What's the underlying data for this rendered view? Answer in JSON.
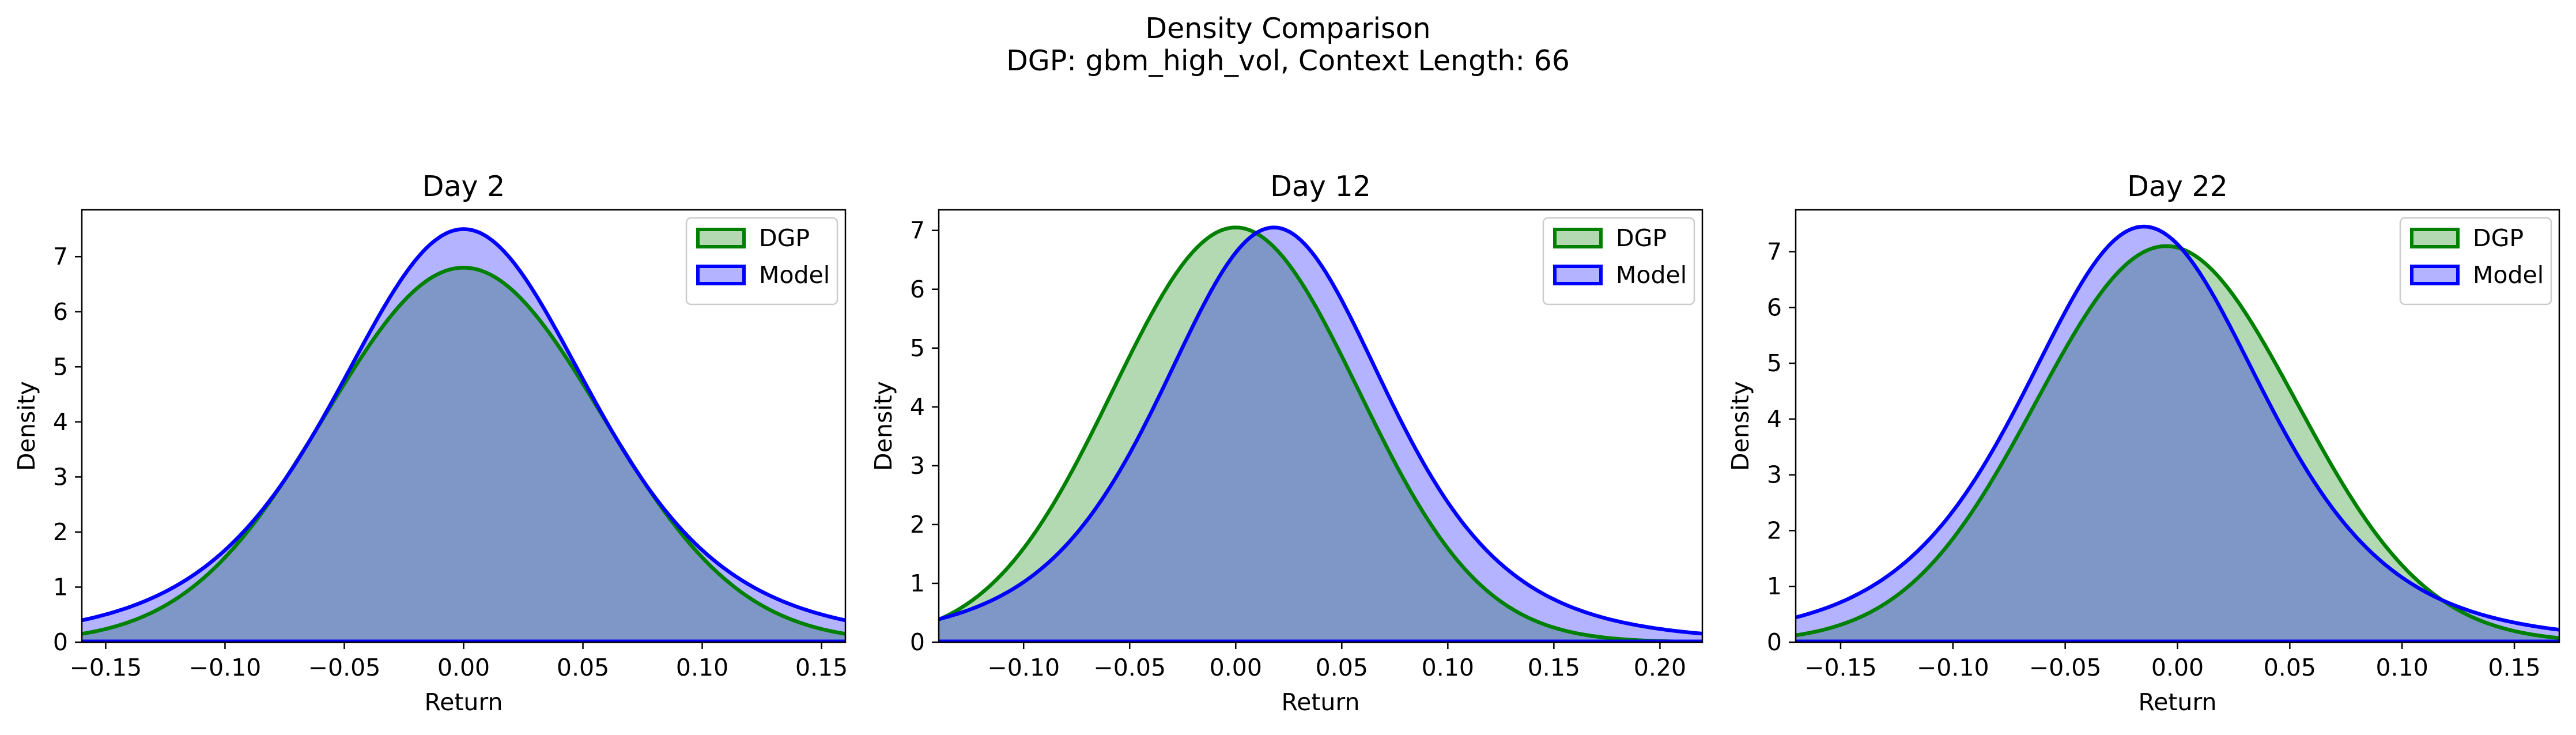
{
  "figure": {
    "title": "Density Comparison",
    "subtitle": "DGP: gbm_high_vol, Context Length: 66"
  },
  "colors": {
    "dgp_line": "#008000",
    "dgp_fill": "#b3d9b3",
    "model_line": "#0000ff",
    "model_fill": "#b3b3ff",
    "overlap_fill": "#7f97c7"
  },
  "chart_data": [
    {
      "type": "area",
      "title": "Day 2",
      "xlabel": "Return",
      "ylabel": "Density",
      "xlim": [
        -0.16,
        0.16
      ],
      "ylim": [
        0,
        7.85
      ],
      "xticks": [
        -0.15,
        -0.1,
        -0.05,
        0.0,
        0.05,
        0.1,
        0.15
      ],
      "xtick_labels": [
        "−0.15",
        "−0.10",
        "−0.05",
        "0.00",
        "0.05",
        "0.10",
        "0.15"
      ],
      "yticks": [
        0,
        1,
        2,
        3,
        4,
        5,
        6,
        7
      ],
      "ytick_labels": [
        "0",
        "1",
        "2",
        "3",
        "4",
        "5",
        "6",
        "7"
      ],
      "legend": {
        "position": "upper right",
        "entries": [
          "DGP",
          "Model"
        ]
      },
      "series": [
        {
          "name": "DGP",
          "shape": "normal",
          "peak_x": 0.0,
          "peak_density": 6.8
        },
        {
          "name": "Model",
          "shape": "student-t",
          "peak_x": 0.0,
          "peak_density": 7.5
        }
      ]
    },
    {
      "type": "area",
      "title": "Day 12",
      "xlabel": "Return",
      "ylabel": "Density",
      "xlim": [
        -0.14,
        0.22
      ],
      "ylim": [
        0,
        7.35
      ],
      "xticks": [
        -0.1,
        -0.05,
        0.0,
        0.05,
        0.1,
        0.15,
        0.2
      ],
      "xtick_labels": [
        "−0.10",
        "−0.05",
        "0.00",
        "0.05",
        "0.10",
        "0.15",
        "0.20"
      ],
      "yticks": [
        0,
        1,
        2,
        3,
        4,
        5,
        6,
        7
      ],
      "ytick_labels": [
        "0",
        "1",
        "2",
        "3",
        "4",
        "5",
        "6",
        "7"
      ],
      "legend": {
        "position": "upper right",
        "entries": [
          "DGP",
          "Model"
        ]
      },
      "series": [
        {
          "name": "DGP",
          "shape": "normal",
          "peak_x": 0.0,
          "peak_density": 7.05
        },
        {
          "name": "Model",
          "shape": "student-t",
          "peak_x": 0.018,
          "peak_density": 7.05
        }
      ]
    },
    {
      "type": "area",
      "title": "Day 22",
      "xlabel": "Return",
      "ylabel": "Density",
      "xlim": [
        -0.17,
        0.17
      ],
      "ylim": [
        0,
        7.75
      ],
      "xticks": [
        -0.15,
        -0.1,
        -0.05,
        0.0,
        0.05,
        0.1,
        0.15
      ],
      "xtick_labels": [
        "−0.15",
        "−0.10",
        "−0.05",
        "0.00",
        "0.05",
        "0.10",
        "0.15"
      ],
      "yticks": [
        0,
        1,
        2,
        3,
        4,
        5,
        6,
        7
      ],
      "ytick_labels": [
        "0",
        "1",
        "2",
        "3",
        "4",
        "5",
        "6",
        "7"
      ],
      "legend": {
        "position": "upper right",
        "entries": [
          "DGP",
          "Model"
        ]
      },
      "series": [
        {
          "name": "DGP",
          "shape": "normal",
          "peak_x": -0.005,
          "peak_density": 7.1
        },
        {
          "name": "Model",
          "shape": "student-t",
          "peak_x": -0.015,
          "peak_density": 7.45
        }
      ]
    }
  ]
}
